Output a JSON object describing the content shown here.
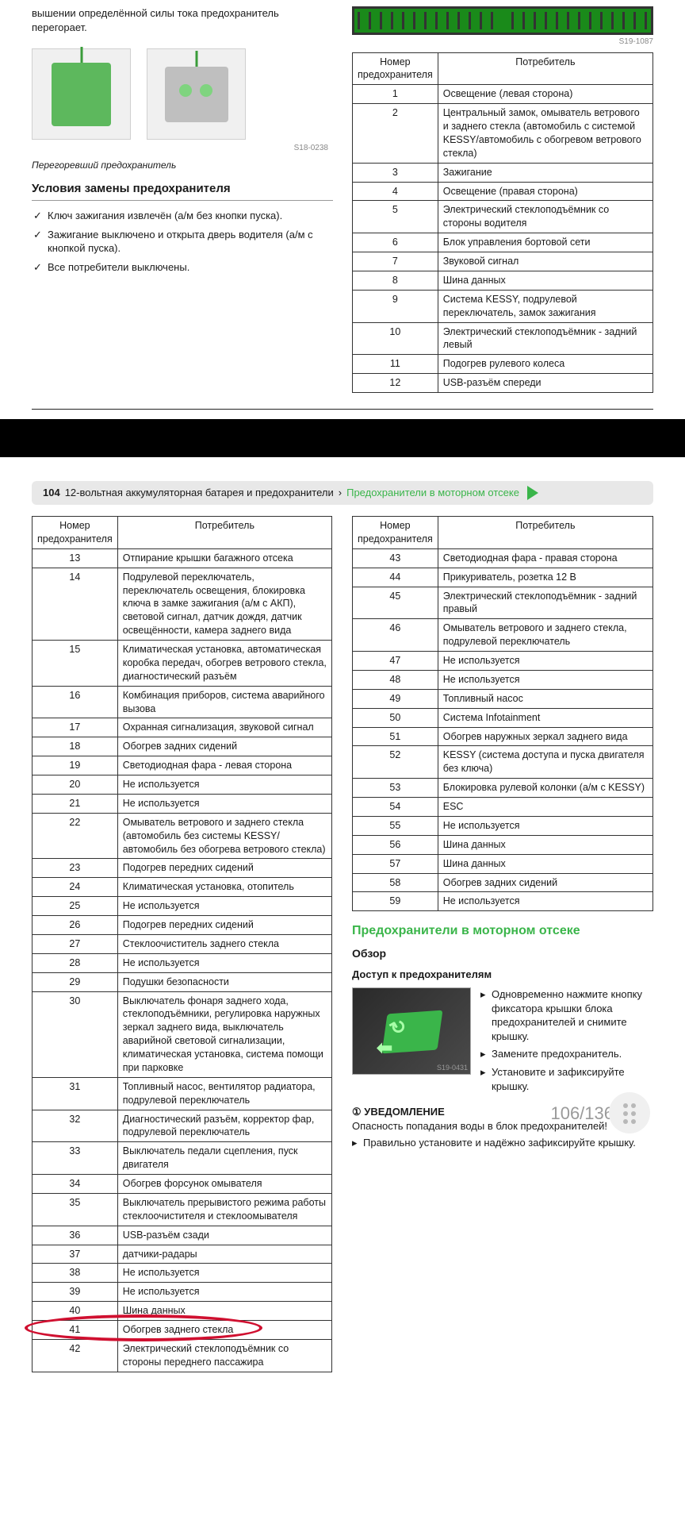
{
  "colors": {
    "accent_green": "#3ab54a",
    "text": "#1a1a1a",
    "border": "#333333",
    "bg": "#ffffff",
    "header_bg": "#e8e8e8",
    "red_highlight": "#d01030"
  },
  "top": {
    "intro_fragment": "вышении определённой силы тока предохранитель перегорает.",
    "fuse_img_ref": "S18-0238",
    "caption": "Перегоревший предохранитель",
    "cond_heading": "Условия замены предохранителя",
    "conditions": [
      "Ключ зажигания извлечён (а/м без кнопки пуска).",
      "Зажигание выключено и открыта дверь водителя (а/м с кнопкой пуска).",
      "Все потребители выключены."
    ],
    "diagram_ref": "S19-1087",
    "table_headers": {
      "num": "Номер предохранителя",
      "cons": "Потребитель"
    },
    "rows": [
      {
        "n": "1",
        "t": "Освещение (левая сторона)"
      },
      {
        "n": "2",
        "t": "Центральный замок, омыватель ветрового и заднего стекла (автомобиль с системой KESSY/автомобиль с обогревом ветрового стекла)"
      },
      {
        "n": "3",
        "t": "Зажигание"
      },
      {
        "n": "4",
        "t": "Освещение (правая сторона)"
      },
      {
        "n": "5",
        "t": "Электрический стеклоподъёмник со стороны водителя"
      },
      {
        "n": "6",
        "t": "Блок управления бортовой сети"
      },
      {
        "n": "7",
        "t": "Звуковой сигнал"
      },
      {
        "n": "8",
        "t": "Шина данных"
      },
      {
        "n": "9",
        "t": "Система KESSY, подрулевой переключатель, замок зажигания"
      },
      {
        "n": "10",
        "t": "Электрический стеклоподъёмник - задний левый"
      },
      {
        "n": "11",
        "t": "Подогрев рулевого колеса"
      },
      {
        "n": "12",
        "t": "USB-разъём спереди"
      }
    ]
  },
  "section_header": {
    "page": "104",
    "title": "12-вольтная аккумуляторная батарея и предохранители",
    "sep": "›",
    "sub": "Предохранители в моторном отсеке"
  },
  "left_table": {
    "headers": {
      "num": "Номер предохранителя",
      "cons": "Потребитель"
    },
    "rows": [
      {
        "n": "13",
        "t": "Отпирание крышки багажного отсека"
      },
      {
        "n": "14",
        "t": "Подрулевой переключатель, переключатель освещения, блокировка ключа в замке зажигания (а/м с АКП), световой сигнал, датчик дождя, датчик освещённости, камера заднего вида"
      },
      {
        "n": "15",
        "t": "Климатическая установка, автоматическая коробка передач, обогрев ветрового стекла, диагностический разъём"
      },
      {
        "n": "16",
        "t": "Комбинация приборов, система аварийного вызова"
      },
      {
        "n": "17",
        "t": "Охранная сигнализация, звуковой сигнал"
      },
      {
        "n": "18",
        "t": "Обогрев задних сидений"
      },
      {
        "n": "19",
        "t": "Светодиодная фара - левая сторона"
      },
      {
        "n": "20",
        "t": "Не используется"
      },
      {
        "n": "21",
        "t": "Не используется"
      },
      {
        "n": "22",
        "t": "Омыватель ветрового и заднего стекла (автомобиль без системы KESSY/автомобиль без обогрева ветрового стекла)"
      },
      {
        "n": "23",
        "t": "Подогрев передних сидений"
      },
      {
        "n": "24",
        "t": "Климатическая установка, отопитель"
      },
      {
        "n": "25",
        "t": "Не используется"
      },
      {
        "n": "26",
        "t": "Подогрев передних сидений"
      },
      {
        "n": "27",
        "t": "Стеклоочиститель заднего стекла"
      },
      {
        "n": "28",
        "t": "Не используется"
      },
      {
        "n": "29",
        "t": "Подушки безопасности"
      },
      {
        "n": "30",
        "t": "Выключатель фонаря заднего хода, стеклоподъёмники, регулировка наружных зеркал заднего вида, выключатель аварийной световой сигнализации, климатическая установка, система помощи при парковке"
      },
      {
        "n": "31",
        "t": "Топливный насос, вентилятор радиатора, подрулевой переключатель"
      },
      {
        "n": "32",
        "t": "Диагностический разъём, корректор фар, подрулевой переключатель"
      },
      {
        "n": "33",
        "t": "Выключатель педали сцепления, пуск двигателя"
      },
      {
        "n": "34",
        "t": "Обогрев форсунок омывателя"
      },
      {
        "n": "35",
        "t": "Выключатель прерывистого режима работы стеклоочистителя и стеклоомывателя"
      },
      {
        "n": "36",
        "t": "USB-разъём сзади"
      },
      {
        "n": "37",
        "t": "датчики-радары"
      },
      {
        "n": "38",
        "t": "Не используется"
      },
      {
        "n": "39",
        "t": "Не используется"
      },
      {
        "n": "40",
        "t": "Шина данных"
      },
      {
        "n": "41",
        "t": "Обогрев заднего стекла"
      },
      {
        "n": "42",
        "t": "Электрический стеклоподъёмник со стороны переднего пассажира"
      }
    ],
    "highlight_index": 28
  },
  "right_table": {
    "headers": {
      "num": "Номер предохранителя",
      "cons": "Потребитель"
    },
    "rows": [
      {
        "n": "43",
        "t": "Светодиодная фара - правая сторона"
      },
      {
        "n": "44",
        "t": "Прикуриватель, розетка 12 В"
      },
      {
        "n": "45",
        "t": "Электрический стеклоподъёмник - задний правый"
      },
      {
        "n": "46",
        "t": "Омыватель ветрового и заднего стекла, подрулевой переключатель"
      },
      {
        "n": "47",
        "t": "Не используется"
      },
      {
        "n": "48",
        "t": "Не используется"
      },
      {
        "n": "49",
        "t": "Топливный насос"
      },
      {
        "n": "50",
        "t": "Система Infotainment"
      },
      {
        "n": "51",
        "t": "Обогрев наружных зеркал заднего вида"
      },
      {
        "n": "52",
        "t": "KESSY (система доступа и пуска двигателя без ключа)"
      },
      {
        "n": "53",
        "t": "Блокировка рулевой колонки (а/м с KESSY)"
      },
      {
        "n": "54",
        "t": "ESC"
      },
      {
        "n": "55",
        "t": "Не используется"
      },
      {
        "n": "56",
        "t": "Шина данных"
      },
      {
        "n": "57",
        "t": "Шина данных"
      },
      {
        "n": "58",
        "t": "Обогрев задних сидений"
      },
      {
        "n": "59",
        "t": "Не используется"
      }
    ]
  },
  "engine_section": {
    "heading": "Предохранители в моторном отсеке",
    "overview": "Обзор",
    "access": "Доступ к предохранителям",
    "img_ref": "S19-0431",
    "steps": [
      "Одновременно нажмите кнопку фиксатора крышки блока предохранителей и снимите крышку.",
      "Замените предохранитель.",
      "Установите и зафиксируйте крышку."
    ],
    "notice_label": "УВЕДОМЛЕНИЕ",
    "notice_text": "Опасность попадания воды в блок предохранителей!",
    "notice_bullet": "Правильно установите и надёжно зафиксируйте крышку."
  },
  "page_counter": "106/136"
}
